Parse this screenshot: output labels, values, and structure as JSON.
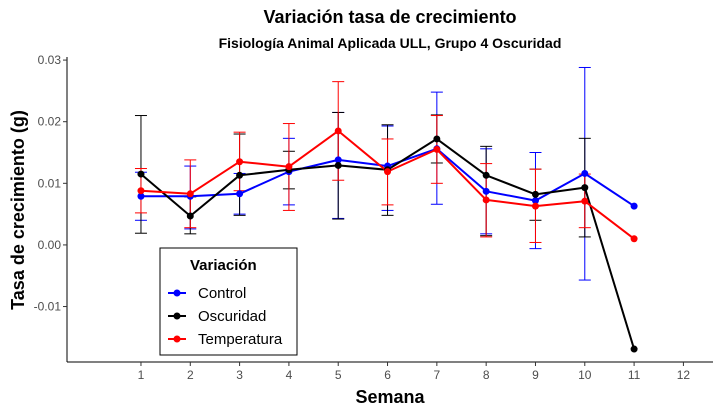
{
  "chart_data": {
    "type": "line",
    "title": "Variación tasa de crecimiento",
    "subtitle": "Fisiología Animal Aplicada ULL, Grupo 4 Oscuridad",
    "xlabel": "Semana",
    "ylabel": "Tasa de crecimiento (g)",
    "xlim": [
      -0.5,
      12.6
    ],
    "ylim": [
      -0.019,
      0.0305
    ],
    "x_ticks": [
      1,
      2,
      3,
      4,
      5,
      6,
      7,
      8,
      9,
      10,
      11,
      12
    ],
    "y_ticks": [
      -0.01,
      0.0,
      0.01,
      0.02,
      0.03
    ],
    "y_tick_labels": [
      "-0.01",
      "0.00",
      "0.01",
      "0.02",
      "0.03"
    ],
    "grid": false,
    "legend": {
      "title": "Variación",
      "placement": "bottom-left"
    },
    "series": [
      {
        "name": "Control",
        "color": "#0000ff",
        "x": [
          1,
          2,
          3,
          4,
          5,
          6,
          7,
          8,
          9,
          10,
          11
        ],
        "y": [
          0.0079,
          0.0079,
          0.0083,
          0.0119,
          0.0138,
          0.0128,
          0.0156,
          0.0087,
          0.0072,
          0.0116,
          0.0063
        ],
        "err_low": [
          0.004,
          0.0026,
          0.005,
          0.0065,
          0.0043,
          0.0056,
          0.0066,
          0.0018,
          -0.0006,
          -0.0057,
          null
        ],
        "err_high": [
          0.0118,
          0.0128,
          0.0116,
          0.0173,
          0.0215,
          0.0193,
          0.0248,
          0.0156,
          0.015,
          0.0288,
          null
        ]
      },
      {
        "name": "Oscuridad",
        "color": "#000000",
        "x": [
          1,
          2,
          3,
          4,
          5,
          6,
          7,
          8,
          9,
          10,
          11
        ],
        "y": [
          0.0115,
          0.0047,
          0.0113,
          0.0122,
          0.0129,
          0.0122,
          0.0172,
          0.0113,
          0.0082,
          0.0093,
          -0.0169
        ],
        "err_low": [
          0.0019,
          0.0018,
          0.0048,
          0.0091,
          0.0042,
          0.0048,
          0.0133,
          0.0015,
          0.004,
          0.0013,
          null
        ],
        "err_high": [
          0.021,
          0.0078,
          0.018,
          0.0152,
          0.0215,
          0.0195,
          0.0211,
          0.016,
          0.0123,
          0.0173,
          null
        ]
      },
      {
        "name": "Temperatura",
        "color": "#ff0000",
        "x": [
          1,
          2,
          3,
          4,
          5,
          6,
          7,
          8,
          9,
          10,
          11
        ],
        "y": [
          0.0088,
          0.0083,
          0.0135,
          0.0127,
          0.0185,
          0.0119,
          0.0155,
          0.0073,
          0.0063,
          0.0071,
          0.001
        ],
        "err_low": [
          0.0052,
          0.0028,
          0.0088,
          0.0056,
          0.0105,
          0.0065,
          0.01,
          0.0013,
          0.0004,
          0.0028,
          null
        ],
        "err_high": [
          0.0124,
          0.0138,
          0.0183,
          0.0197,
          0.0265,
          0.0172,
          0.021,
          0.0132,
          0.0123,
          0.0115,
          null
        ]
      }
    ]
  }
}
